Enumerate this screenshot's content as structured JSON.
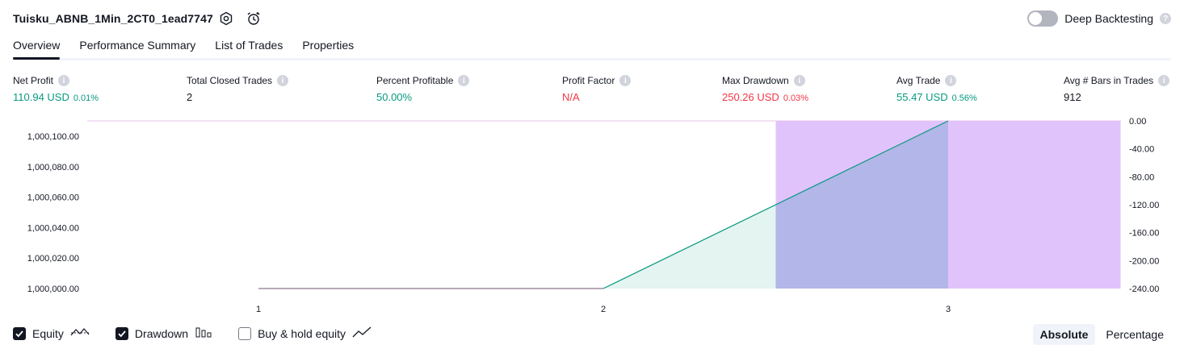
{
  "header": {
    "title": "Tuisku_ABNB_1Min_2CT0_1ead7747",
    "deep_backtesting_label": "Deep Backtesting",
    "deep_backtesting_on": false
  },
  "tabs": [
    {
      "label": "Overview",
      "active": true
    },
    {
      "label": "Performance Summary",
      "active": false
    },
    {
      "label": "List of Trades",
      "active": false
    },
    {
      "label": "Properties",
      "active": false
    }
  ],
  "metrics": [
    {
      "label": "Net Profit",
      "value": "110.94 USD",
      "pct": "0.01%",
      "tone": "green"
    },
    {
      "label": "Total Closed Trades",
      "value": "2",
      "pct": "",
      "tone": "dark"
    },
    {
      "label": "Percent Profitable",
      "value": "50.00%",
      "pct": "",
      "tone": "green"
    },
    {
      "label": "Profit Factor",
      "value": "N/A",
      "pct": "",
      "tone": "red"
    },
    {
      "label": "Max Drawdown",
      "value": "250.26 USD",
      "pct": "0.03%",
      "tone": "red"
    },
    {
      "label": "Avg Trade",
      "value": "55.47 USD",
      "pct": "0.56%",
      "tone": "green"
    },
    {
      "label": "Avg # Bars in Trades",
      "value": "912",
      "pct": "",
      "tone": "dark"
    }
  ],
  "chart_data": {
    "type": "area",
    "x_ticks": [
      "1",
      "2",
      "3"
    ],
    "left_axis": {
      "ticks": [
        "1,000,100.00",
        "1,000,080.00",
        "1,000,060.00",
        "1,000,040.00",
        "1,000,020.00",
        "1,000,000.00"
      ],
      "range": [
        1000000,
        1000100
      ]
    },
    "right_axis": {
      "ticks": [
        "0.00",
        "-40.00",
        "-80.00",
        "-120.00",
        "-160.00",
        "-200.00",
        "-240.00"
      ],
      "range": [
        -240,
        0
      ]
    },
    "equity": {
      "x": [
        1,
        2,
        3
      ],
      "y": [
        1000000,
        1000000,
        1000110.94
      ]
    },
    "drawdown_bars": [
      {
        "x_start": 2.5,
        "x_end": 3.0,
        "value": -250.26
      },
      {
        "x_start": 3.0,
        "x_end": 3.5,
        "value": -250.26
      }
    ],
    "colors": {
      "equity_line": "#089981",
      "equity_fill": "#e0f3ef",
      "drawdown_fill": "#e1c3fc",
      "overlap_fill": "#b2b6e8",
      "baseline": "#a08ca0"
    }
  },
  "footer": {
    "checks": [
      {
        "label": "Equity",
        "checked": true,
        "icon": "equity-line-icon"
      },
      {
        "label": "Drawdown",
        "checked": true,
        "icon": "drawdown-bars-icon"
      },
      {
        "label": "Buy & hold equity",
        "checked": false,
        "icon": "buyhold-line-icon"
      }
    ],
    "modes": [
      {
        "label": "Absolute",
        "active": true
      },
      {
        "label": "Percentage",
        "active": false
      }
    ]
  }
}
